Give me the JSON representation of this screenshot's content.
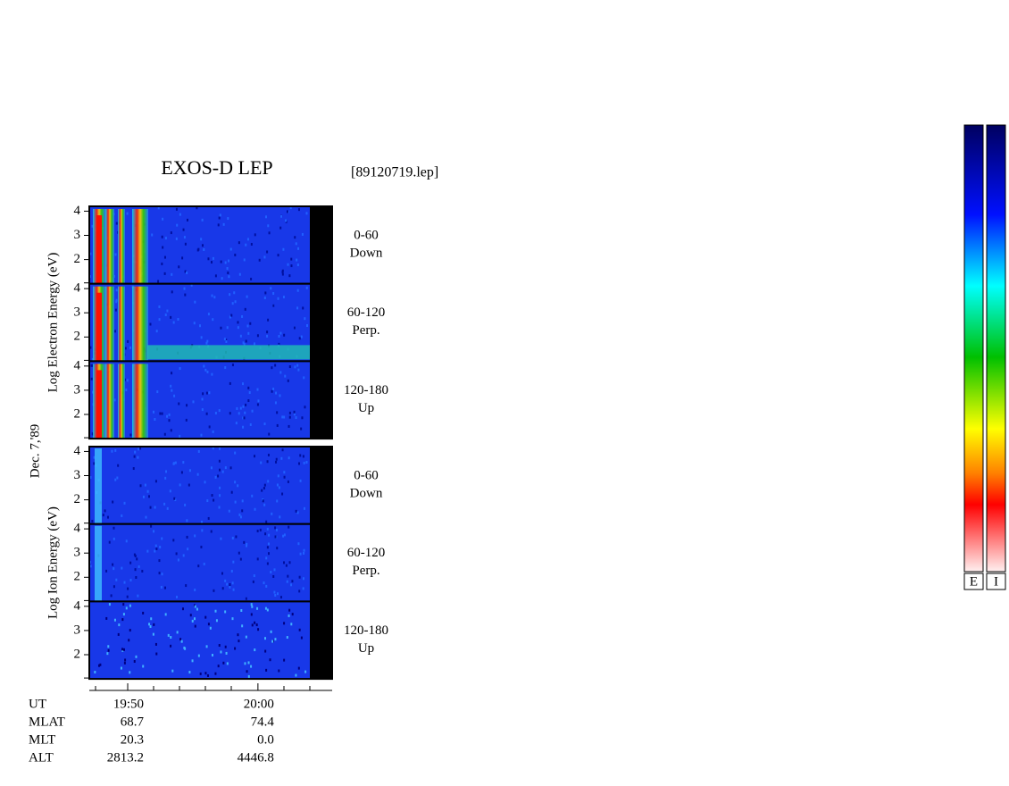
{
  "title": "EXOS-D LEP",
  "file": "[89120719.lep]",
  "date_label": "Dec. 7,'89",
  "groups": [
    {
      "ylabel": "Log  Electron  Energy (eV)",
      "panels": [
        {
          "angle": "0-60",
          "direction": "Down"
        },
        {
          "angle": "60-120",
          "direction": "Perp."
        },
        {
          "angle": "120-180",
          "direction": "Up"
        }
      ]
    },
    {
      "ylabel": "Log  Ion  Energy (eV)",
      "panels": [
        {
          "angle": "0-60",
          "direction": "Down"
        },
        {
          "angle": "60-120",
          "direction": "Perp."
        },
        {
          "angle": "120-180",
          "direction": "Up"
        }
      ]
    }
  ],
  "ylim": [
    1,
    4.2
  ],
  "yticks": [
    2,
    3,
    4
  ],
  "xlim": [
    1187.05,
    1205.7
  ],
  "xticks": [
    {
      "value": 1190,
      "label": "19:50"
    },
    {
      "value": 1200,
      "label": "20:00"
    }
  ],
  "ut_label": "UT",
  "ephemeris": [
    {
      "name": "MLAT",
      "values": [
        "68.7",
        "74.4"
      ]
    },
    {
      "name": "MLT",
      "values": [
        "20.3",
        "0.0"
      ]
    },
    {
      "name": "ALT",
      "values": [
        "2813.2",
        "4446.8"
      ]
    }
  ],
  "colorbars": [
    "E",
    "I"
  ]
}
